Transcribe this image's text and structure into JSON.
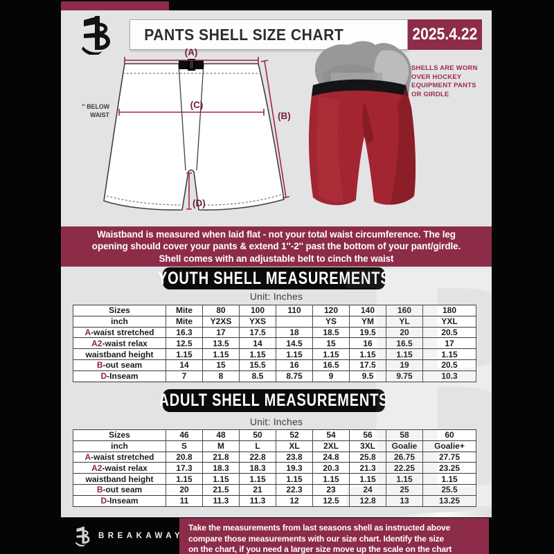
{
  "header": {
    "title": "PANTS SHELL SIZE CHART",
    "date": "2025.4.22"
  },
  "diagram": {
    "label_a": "(A)",
    "label_b": "(B)",
    "label_c": "(C)",
    "label_d": "(D)",
    "below_waist_line1": "7'' BELOW",
    "below_waist_line2": "WAIST"
  },
  "photo": {
    "caption_lines": [
      "SHELLS ARE WORN",
      "OVER HOCKEY",
      "EQUIPMENT PANTS",
      "OR GIRDLE"
    ]
  },
  "notice": {
    "lines": [
      "Waistband is measured when laid flat - not your total waist circumference. The leg",
      "opening should cover your pants & extend 1''-2'' past the bottom of your pant/girdle.",
      "Shell comes with an adjustable belt to cinch the waist"
    ]
  },
  "youth": {
    "heading": "YOUTH SHELL MEASUREMENTS",
    "unit": "Unit: Inches",
    "table": {
      "rows": [
        {
          "accent": "",
          "label": "Sizes",
          "values": [
            "Mite",
            "80",
            "100",
            "110",
            "120",
            "140",
            "160",
            "180"
          ]
        },
        {
          "accent": "",
          "label": "inch",
          "values": [
            "Mite",
            "Y2XS",
            "YXS",
            "",
            "YS",
            "YM",
            "YL",
            "YXL"
          ]
        },
        {
          "accent": "A",
          "label": "-waist stretched",
          "values": [
            "16.3",
            "17",
            "17.5",
            "18",
            "18.5",
            "19.5",
            "20",
            "20.5"
          ]
        },
        {
          "accent": "A2",
          "label": "-waist relax",
          "values": [
            "12.5",
            "13.5",
            "14",
            "14.5",
            "15",
            "16",
            "16.5",
            "17"
          ]
        },
        {
          "accent": "",
          "label": "waistband height",
          "values": [
            "1.15",
            "1.15",
            "1.15",
            "1.15",
            "1.15",
            "1.15",
            "1.15",
            "1.15"
          ]
        },
        {
          "accent": "B",
          "label": "-out seam",
          "values": [
            "14",
            "15",
            "15.5",
            "16",
            "16.5",
            "17.5",
            "19",
            "20.5"
          ]
        },
        {
          "accent": "D",
          "label": "-Inseam",
          "values": [
            "7",
            "8",
            "8.5",
            "8.75",
            "9",
            "9.5",
            "9.75",
            "10.3"
          ]
        }
      ]
    }
  },
  "adult": {
    "heading": "ADULT SHELL MEASUREMENTS",
    "unit": "Unit: Inches",
    "table": {
      "rows": [
        {
          "accent": "",
          "label": "Sizes",
          "values": [
            "46",
            "48",
            "50",
            "52",
            "54",
            "56",
            "58",
            "60"
          ]
        },
        {
          "accent": "",
          "label": "inch",
          "values": [
            "S",
            "M",
            "L",
            "XL",
            "2XL",
            "3XL",
            "Goalie",
            "Goalie+"
          ]
        },
        {
          "accent": "A",
          "label": "-waist stretched",
          "values": [
            "20.8",
            "21.8",
            "22.8",
            "23.8",
            "24.8",
            "25.8",
            "26.75",
            "27.75"
          ]
        },
        {
          "accent": "A2",
          "label": "-waist relax",
          "values": [
            "17.3",
            "18.3",
            "18.3",
            "19.3",
            "20.3",
            "21.3",
            "22.25",
            "23.25"
          ]
        },
        {
          "accent": "",
          "label": "waistband height",
          "values": [
            "1.15",
            "1.15",
            "1.15",
            "1.15",
            "1.15",
            "1.15",
            "1.15",
            "1.15"
          ]
        },
        {
          "accent": "B",
          "label": "-out seam",
          "values": [
            "20",
            "21.5",
            "21",
            "22.3",
            "23",
            "24",
            "25",
            "25.5"
          ]
        },
        {
          "accent": "D",
          "label": "-Inseam",
          "values": [
            "11",
            "11.3",
            "11.3",
            "12",
            "12.5",
            "12.8",
            "13",
            "13.25"
          ]
        }
      ]
    }
  },
  "footer": {
    "brand": "BREAKAWAY",
    "lines": [
      "Take the measurements from last seasons shell as instructed above",
      "compare those measurements  with our size chart. Identify the size",
      "on the chart, if you need a larger size move up the scale on the chart"
    ]
  },
  "watermark": "B",
  "colors": {
    "maroon": "#8d2c48",
    "accent_line": "#a02348",
    "label_maroon": "#7c2240",
    "page_gray": "#e3e3e5",
    "heading_black": "#0b0b0b",
    "shell_red": "#a32531"
  }
}
